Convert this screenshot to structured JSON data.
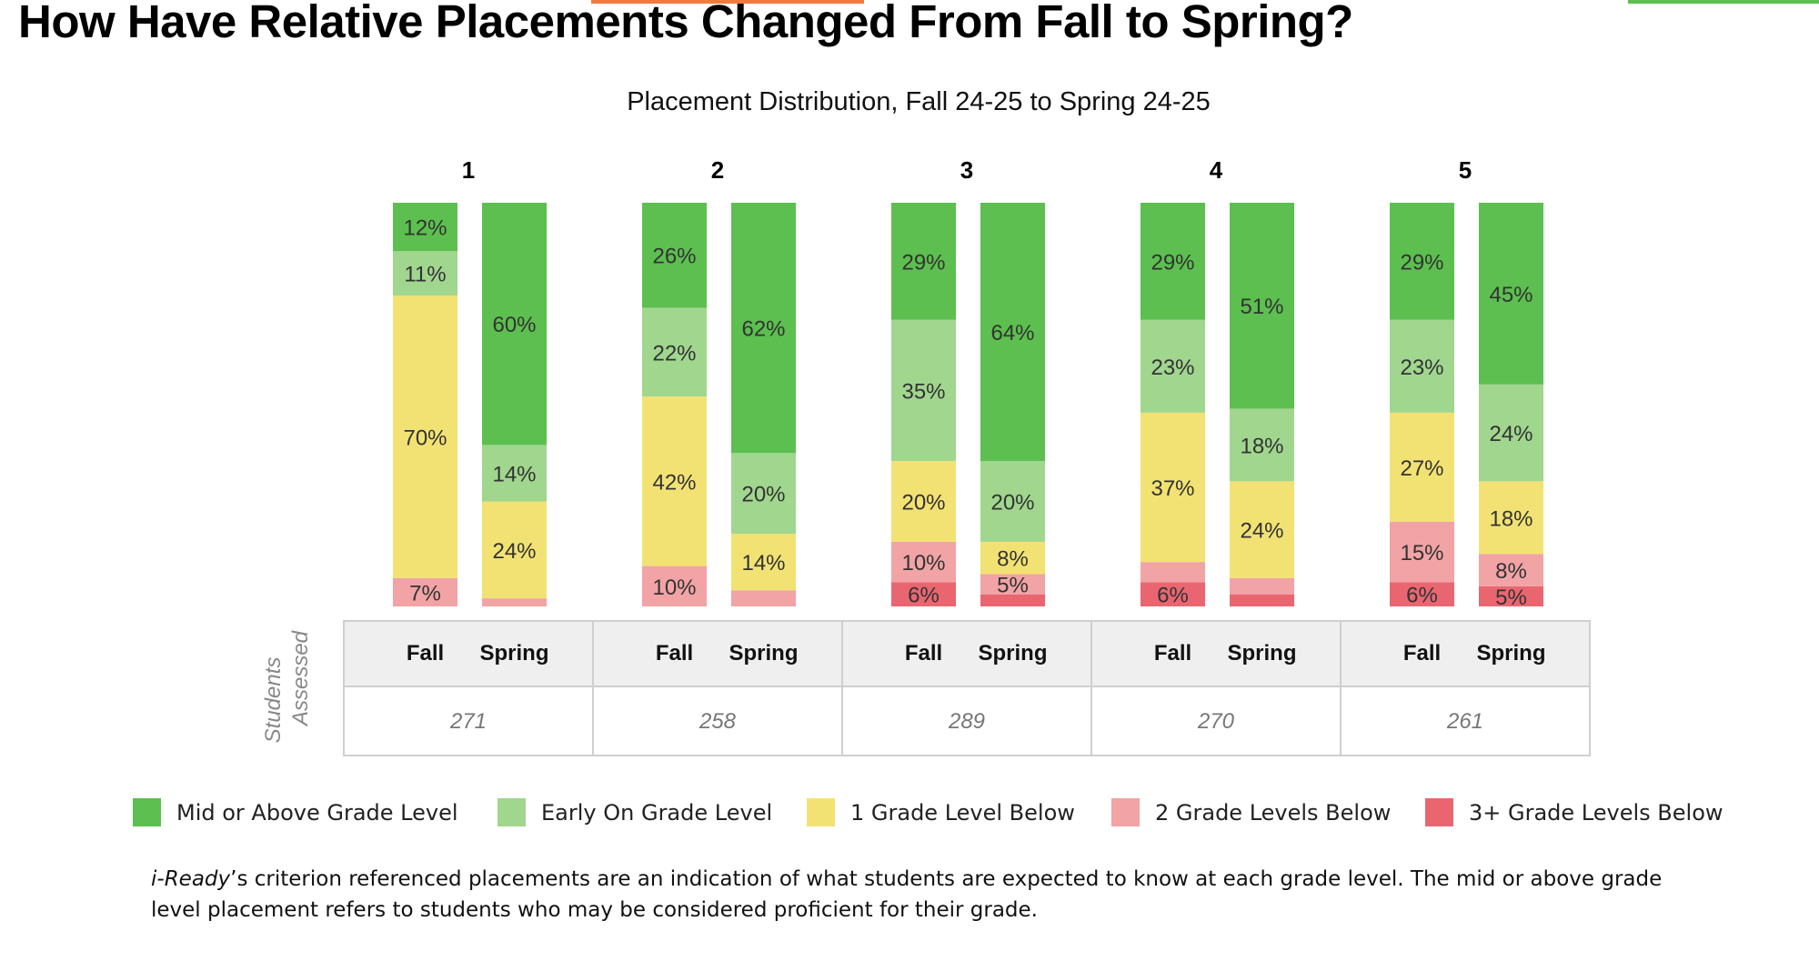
{
  "page_title": "How Have Relative Placements Changed From Fall to Spring?",
  "accent_colors": {
    "top_orange": "#f07b3f",
    "top_green": "#5cbf4f"
  },
  "footnote": {
    "emphasis": "i-Ready",
    "rest": "’s criterion referenced placements are an indication of what students are expected to know at each grade level. The mid or above grade level placement refers to students who may be considered proficient for their grade."
  },
  "table": {
    "row_label": "Students Assessed",
    "fall_label": "Fall",
    "spring_label": "Spring"
  },
  "chart_data": {
    "type": "bar",
    "stacked": true,
    "normalized": true,
    "title": "Placement Distribution, Fall 24-25 to Spring 24-25",
    "grid": false,
    "legend_position": "bottom",
    "stack_order": [
      "3+ Grade Levels Below",
      "2 Grade Levels Below",
      "1 Grade Level Below",
      "Early On Grade Level",
      "Mid or Above Grade Level"
    ],
    "categories_legend": [
      {
        "name": "Mid or Above Grade Level",
        "color": "#5cbf4f"
      },
      {
        "name": "Early On Grade Level",
        "color": "#a0d68e"
      },
      {
        "name": "1 Grade Level Below",
        "color": "#f2e273"
      },
      {
        "name": "2 Grade Levels Below",
        "color": "#f1a3a5"
      },
      {
        "name": "3+ Grade Levels Below",
        "color": "#e96671"
      }
    ],
    "groups": [
      {
        "label": "1",
        "students_assessed": "271",
        "fall": {
          "values": [
            0,
            7,
            70,
            11,
            12
          ],
          "labels": [
            "",
            "7%",
            "70%",
            "11%",
            "12%"
          ]
        },
        "spring": {
          "values": [
            0,
            2,
            24,
            14,
            60
          ],
          "labels": [
            "",
            "",
            "24%",
            "14%",
            "60%"
          ]
        }
      },
      {
        "label": "2",
        "students_assessed": "258",
        "fall": {
          "values": [
            0,
            10,
            42,
            22,
            26
          ],
          "labels": [
            "",
            "10%",
            "42%",
            "22%",
            "26%"
          ]
        },
        "spring": {
          "values": [
            0,
            4,
            14,
            20,
            62
          ],
          "labels": [
            "",
            "",
            "14%",
            "20%",
            "62%"
          ]
        }
      },
      {
        "label": "3",
        "students_assessed": "289",
        "fall": {
          "values": [
            6,
            10,
            20,
            35,
            29
          ],
          "labels": [
            "6%",
            "10%",
            "20%",
            "35%",
            "29%"
          ]
        },
        "spring": {
          "values": [
            3,
            5,
            8,
            20,
            64
          ],
          "labels": [
            "",
            "5%",
            "8%",
            "20%",
            "64%"
          ]
        }
      },
      {
        "label": "4",
        "students_assessed": "270",
        "fall": {
          "values": [
            6,
            5,
            37,
            23,
            29
          ],
          "labels": [
            "6%",
            "",
            "37%",
            "23%",
            "29%"
          ]
        },
        "spring": {
          "values": [
            3,
            4,
            24,
            18,
            51
          ],
          "labels": [
            "",
            "",
            "24%",
            "18%",
            "51%"
          ]
        }
      },
      {
        "label": "5",
        "students_assessed": "261",
        "fall": {
          "values": [
            6,
            15,
            27,
            23,
            29
          ],
          "labels": [
            "6%",
            "15%",
            "27%",
            "23%",
            "29%"
          ]
        },
        "spring": {
          "values": [
            5,
            8,
            18,
            24,
            45
          ],
          "labels": [
            "5%",
            "8%",
            "18%",
            "24%",
            "45%"
          ]
        }
      }
    ]
  }
}
